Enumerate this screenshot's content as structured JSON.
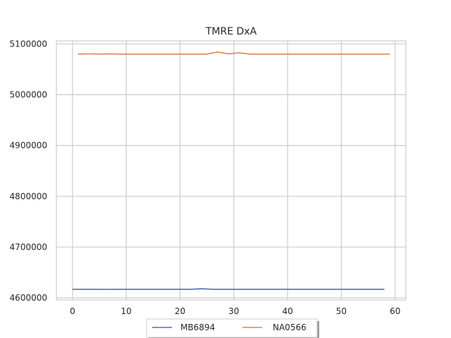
{
  "chart_data": {
    "type": "line",
    "title": "TMRE DxA",
    "xlabel": "",
    "ylabel": "",
    "xlim": [
      -3,
      62
    ],
    "ylim": [
      4596000,
      5106000
    ],
    "xticks": [
      0,
      10,
      20,
      30,
      40,
      50,
      60
    ],
    "yticks": [
      4600000,
      4700000,
      4800000,
      4900000,
      5000000,
      5100000
    ],
    "xtick_labels": [
      "0",
      "10",
      "20",
      "30",
      "40",
      "50",
      "60"
    ],
    "ytick_labels": [
      "4600000",
      "4700000",
      "4800000",
      "4900000",
      "5000000",
      "5100000"
    ],
    "grid": true,
    "legend_position": "bottom-center",
    "series": [
      {
        "name": "MB6894",
        "color": "#4c72b0",
        "x": [
          0,
          2,
          4,
          6,
          8,
          10,
          12,
          14,
          16,
          18,
          20,
          22,
          24,
          26,
          28,
          30,
          32,
          34,
          36,
          38,
          40,
          42,
          44,
          46,
          48,
          50,
          52,
          54,
          56,
          58
        ],
        "y": [
          4617000,
          4617000,
          4617000,
          4616900,
          4617000,
          4617000,
          4617000,
          4617100,
          4617000,
          4617000,
          4617100,
          4617000,
          4618000,
          4617000,
          4617000,
          4617000,
          4617000,
          4617000,
          4617000,
          4617000,
          4617000,
          4617000,
          4617000,
          4617000,
          4617000,
          4617000,
          4617000,
          4617000,
          4617000,
          4617000
        ]
      },
      {
        "name": "NA0566",
        "color": "#dd8452",
        "x": [
          1,
          3,
          5,
          7,
          9,
          11,
          13,
          15,
          17,
          19,
          21,
          23,
          25,
          27,
          29,
          31,
          33,
          35,
          37,
          39,
          41,
          43,
          45,
          47,
          49,
          51,
          53,
          55,
          57,
          59
        ],
        "y": [
          5080000,
          5080500,
          5080000,
          5080500,
          5080000,
          5080000,
          5080000,
          5080000,
          5080000,
          5080000,
          5080000,
          5080000,
          5080000,
          5084000,
          5080500,
          5082500,
          5080000,
          5080000,
          5080000,
          5080000,
          5080000,
          5080000,
          5080000,
          5080000,
          5080000,
          5080000,
          5080000,
          5080000,
          5080000,
          5080000
        ]
      }
    ]
  }
}
